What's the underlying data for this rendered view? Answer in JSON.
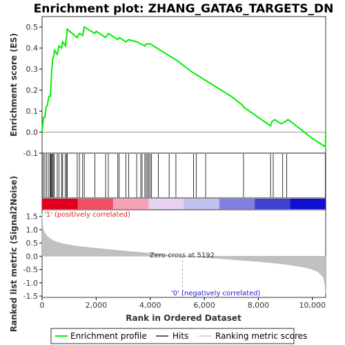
{
  "chart_data": {
    "type": "line",
    "title": "Enrichment plot: ZHANG_GATA6_TARGETS_DN",
    "xlabel": "Rank in Ordered Dataset",
    "es_panel": {
      "ylabel": "Enrichment score (ES)",
      "ylim": [
        -0.1,
        0.55
      ],
      "yticks": [
        "-0.1",
        "0.0",
        "0.1",
        "0.2",
        "0.3",
        "0.4",
        "0.5"
      ],
      "ytick_values": [
        -0.1,
        0.0,
        0.1,
        0.2,
        0.3,
        0.4,
        0.5
      ]
    },
    "metric_panel": {
      "ylabel": "Ranked list metric (Signal2Noise)",
      "ylim": [
        -1.55,
        1.75
      ],
      "yticks": [
        "-1.5",
        "-1.0",
        "-0.5",
        "0.0",
        "0.5",
        "1.0",
        "1.5"
      ],
      "ytick_values": [
        -1.5,
        -1.0,
        -0.5,
        0.0,
        0.5,
        1.0,
        1.5
      ],
      "zero_cross_label": "Zero cross at 5192",
      "zero_cross": 5192,
      "positive_label": "'1' (positively correlated)",
      "negative_label": "'0' (negatively correlated)",
      "metric_curve": [
        [
          0,
          1.6
        ],
        [
          20,
          1.15
        ],
        [
          60,
          0.95
        ],
        [
          150,
          0.8
        ],
        [
          300,
          0.65
        ],
        [
          500,
          0.55
        ],
        [
          800,
          0.46
        ],
        [
          1200,
          0.39
        ],
        [
          1800,
          0.32
        ],
        [
          2500,
          0.25
        ],
        [
          3200,
          0.18
        ],
        [
          4000,
          0.11
        ],
        [
          4600,
          0.05
        ],
        [
          5192,
          0.0
        ],
        [
          6000,
          -0.05
        ],
        [
          7000,
          -0.12
        ],
        [
          8000,
          -0.2
        ],
        [
          8800,
          -0.28
        ],
        [
          9400,
          -0.36
        ],
        [
          9900,
          -0.46
        ],
        [
          10200,
          -0.58
        ],
        [
          10400,
          -0.78
        ],
        [
          10460,
          -1.05
        ],
        [
          10490,
          -1.4
        ]
      ]
    },
    "xlim": [
      0,
      10490
    ],
    "xticks": [
      "0",
      "2,000",
      "4,000",
      "6,000",
      "8,000",
      "10,000"
    ],
    "xtick_values": [
      0,
      2000,
      4000,
      6000,
      8000,
      10000
    ],
    "series": [
      {
        "name": "Enrichment profile",
        "color": "#00ee00",
        "points": [
          [
            0,
            0.0
          ],
          [
            50,
            0.07
          ],
          [
            100,
            0.07
          ],
          [
            150,
            0.12
          ],
          [
            200,
            0.13
          ],
          [
            250,
            0.17
          ],
          [
            300,
            0.17
          ],
          [
            330,
            0.22
          ],
          [
            360,
            0.3
          ],
          [
            390,
            0.35
          ],
          [
            430,
            0.36
          ],
          [
            460,
            0.39
          ],
          [
            560,
            0.37
          ],
          [
            620,
            0.41
          ],
          [
            720,
            0.4
          ],
          [
            760,
            0.43
          ],
          [
            860,
            0.41
          ],
          [
            900,
            0.45
          ],
          [
            930,
            0.49
          ],
          [
            1300,
            0.45
          ],
          [
            1380,
            0.47
          ],
          [
            1500,
            0.46
          ],
          [
            1560,
            0.5
          ],
          [
            1950,
            0.47
          ],
          [
            2000,
            0.48
          ],
          [
            2350,
            0.45
          ],
          [
            2450,
            0.47
          ],
          [
            2800,
            0.44
          ],
          [
            2850,
            0.45
          ],
          [
            3100,
            0.43
          ],
          [
            3200,
            0.44
          ],
          [
            3500,
            0.43
          ],
          [
            3650,
            0.42
          ],
          [
            3800,
            0.41
          ],
          [
            3850,
            0.42
          ],
          [
            4000,
            0.42
          ],
          [
            4500,
            0.38
          ],
          [
            5000,
            0.34
          ],
          [
            5500,
            0.29
          ],
          [
            6000,
            0.25
          ],
          [
            6500,
            0.21
          ],
          [
            7000,
            0.17
          ],
          [
            7400,
            0.13
          ],
          [
            7450,
            0.12
          ],
          [
            8000,
            0.07
          ],
          [
            8450,
            0.03
          ],
          [
            8500,
            0.05
          ],
          [
            8600,
            0.06
          ],
          [
            8850,
            0.04
          ],
          [
            9000,
            0.05
          ],
          [
            9100,
            0.06
          ],
          [
            9500,
            0.02
          ],
          [
            10000,
            -0.03
          ],
          [
            10480,
            -0.07
          ],
          [
            10490,
            0.0
          ]
        ]
      }
    ],
    "hits": [
      40,
      100,
      160,
      230,
      290,
      320,
      350,
      380,
      410,
      450,
      560,
      620,
      720,
      760,
      860,
      900,
      930,
      1300,
      1380,
      1500,
      1560,
      1950,
      2350,
      2450,
      2800,
      2850,
      3100,
      3200,
      3500,
      3650,
      3700,
      3800,
      3850,
      3900,
      3950,
      4000,
      4050,
      4300,
      4700,
      4950,
      5600,
      5700,
      6050,
      7450,
      8450,
      8550,
      8900,
      9050,
      10480
    ],
    "colorbar": [
      "#e0001c",
      "#f05060",
      "#f8a0b8",
      "#e8d0f0",
      "#c0c0f0",
      "#8080e0",
      "#4040d0",
      "#1010d0"
    ],
    "legend": {
      "position": "bottom",
      "items": [
        {
          "label": "Enrichment profile",
          "color": "#00ee00",
          "kind": "line"
        },
        {
          "label": "Hits",
          "color": "#000000",
          "kind": "line"
        },
        {
          "label": "Ranking metric scores",
          "color": "#c0c0c0",
          "kind": "line"
        }
      ]
    }
  }
}
